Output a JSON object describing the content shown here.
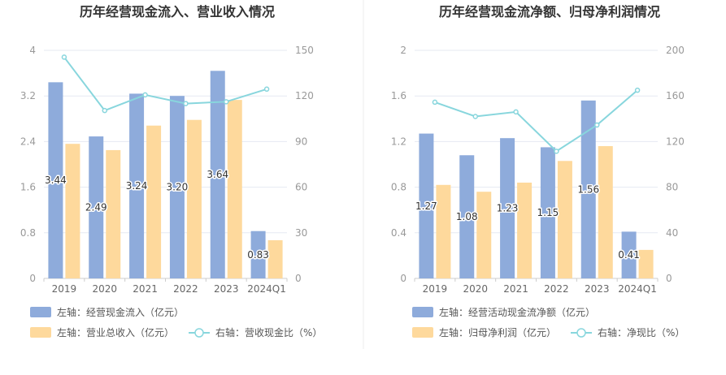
{
  "colors": {
    "bar1": "#8eabdb",
    "bar2": "#fed99c",
    "line": "#88d6dd",
    "grid": "#e6e9f2",
    "divider": "#eeeeee"
  },
  "chart_data": [
    {
      "type": "bar",
      "title": "历年经营现金流入、营业收入情况",
      "categories": [
        "2019",
        "2020",
        "2021",
        "2022",
        "2023",
        "2024Q1"
      ],
      "series": [
        {
          "name": "左轴：经营现金流入（亿元）",
          "axis": "left",
          "type": "bar",
          "values": [
            3.44,
            2.49,
            3.24,
            3.2,
            3.64,
            0.83
          ],
          "show_labels": true
        },
        {
          "name": "左轴：营业总收入（亿元）",
          "axis": "left",
          "type": "bar",
          "values": [
            2.36,
            2.25,
            2.68,
            2.78,
            3.13,
            0.67
          ],
          "show_labels": false
        },
        {
          "name": "右轴：营收现金比（%）",
          "axis": "right",
          "type": "line",
          "values": [
            145.5,
            110.4,
            120.7,
            115.0,
            116.2,
            124.5
          ],
          "show_labels": false
        }
      ],
      "yleft": {
        "ticks": [
          "0",
          "0.8",
          "1.6",
          "2.4",
          "3.2",
          "4"
        ],
        "range": [
          0,
          4
        ]
      },
      "yright": {
        "ticks": [
          "0",
          "30",
          "60",
          "90",
          "120",
          "150"
        ],
        "range": [
          0,
          150
        ]
      },
      "grid": true,
      "legend_position": "bottom-left"
    },
    {
      "type": "bar",
      "title": "历年经营现金流净额、归母净利润情况",
      "categories": [
        "2019",
        "2020",
        "2021",
        "2022",
        "2023",
        "2024Q1"
      ],
      "series": [
        {
          "name": "左轴：经营活动现金流净额（亿元）",
          "axis": "left",
          "type": "bar",
          "values": [
            1.27,
            1.08,
            1.23,
            1.15,
            1.56,
            0.41
          ],
          "show_labels": true
        },
        {
          "name": "左轴：归母净利润（亿元）",
          "axis": "left",
          "type": "bar",
          "values": [
            0.82,
            0.76,
            0.84,
            1.03,
            1.16,
            0.25
          ],
          "show_labels": false
        },
        {
          "name": "右轴：净现比（%）",
          "axis": "right",
          "type": "line",
          "values": [
            154.5,
            142.0,
            146.0,
            111.5,
            134.5,
            165.0
          ],
          "show_labels": false
        }
      ],
      "yleft": {
        "ticks": [
          "0",
          "0.4",
          "0.8",
          "1.2",
          "1.6",
          "2"
        ],
        "range": [
          0,
          2
        ]
      },
      "yright": {
        "ticks": [
          "0",
          "40",
          "80",
          "120",
          "160",
          "200"
        ],
        "range": [
          0,
          200
        ]
      },
      "grid": true,
      "legend_position": "bottom-left"
    }
  ]
}
